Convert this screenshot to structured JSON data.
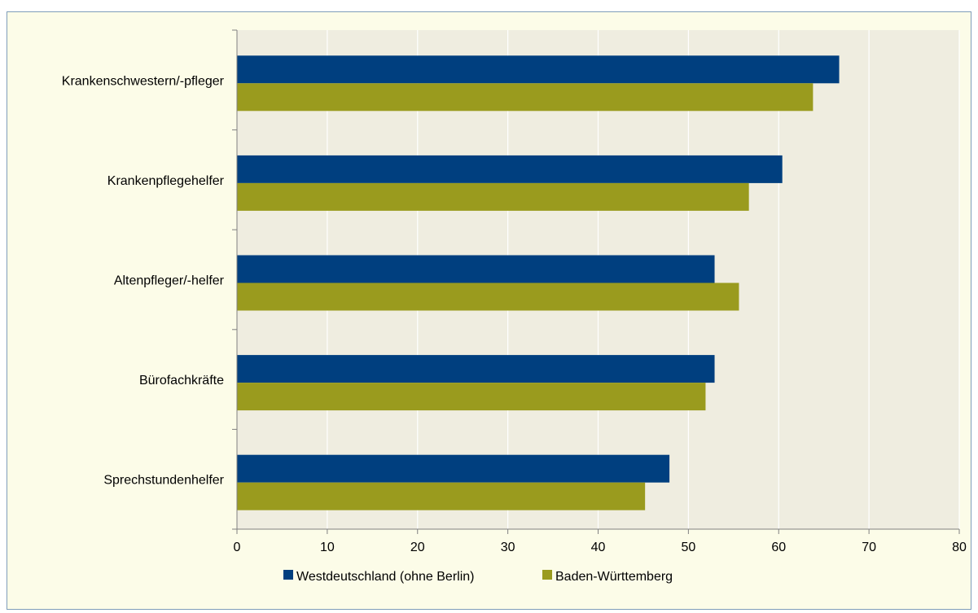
{
  "chart_data": {
    "type": "bar",
    "orientation": "horizontal",
    "title": "",
    "categories": [
      "Krankenschwestern/-pfleger",
      "Krankenpflegehelfer",
      "Altenpfleger/-helfer",
      "Bürofachkräfte",
      "Sprechstundenhelfer"
    ],
    "series": [
      {
        "name": "Westdeutschland (ohne Berlin)",
        "color": "#003f7f",
        "values": [
          66.7,
          60.4,
          52.9,
          52.9,
          47.9
        ]
      },
      {
        "name": "Baden-Württemberg",
        "color": "#9a9b1e",
        "values": [
          63.8,
          56.7,
          55.6,
          51.9,
          45.2
        ]
      }
    ],
    "xlim": [
      0,
      80
    ],
    "xticks": [
      "0",
      "10",
      "20",
      "30",
      "40",
      "50",
      "60",
      "70",
      "80"
    ],
    "xlabel": "",
    "ylabel": "",
    "grid": true,
    "legend_position": "bottom"
  },
  "colors": {
    "plot_background": "#efede0",
    "frame_background": "#fcfce8",
    "grid": "#ffffff"
  }
}
